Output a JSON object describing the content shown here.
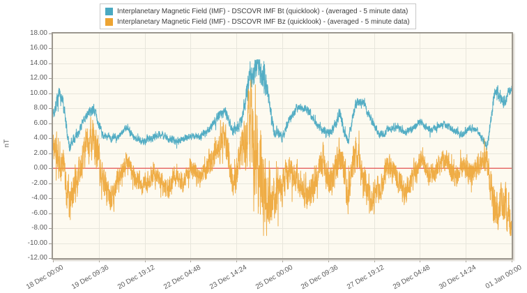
{
  "page": {
    "background": "#ffffff"
  },
  "legend": {
    "items": [
      {
        "id": "bt",
        "label": "Interplanetary Magnetic Field (IMF) - DSCOVR IMF Bt (quicklook) -  (averaged - 5 minute data)",
        "color": "#4aa9c1"
      },
      {
        "id": "bz",
        "label": "Interplanetary Magnetic Field (IMF) - DSCOVR IMF Bz (quicklook) -  (averaged - 5 minute data)",
        "color": "#eda433"
      }
    ]
  },
  "chart_data": {
    "type": "line",
    "title": "",
    "xlabel": "",
    "ylabel": "nT",
    "ylim": [
      -12,
      18
    ],
    "ytick_step": 2,
    "y_tick_labels": [
      "18.00",
      "16.00",
      "14.00",
      "12.00",
      "10.00",
      "8.00",
      "6.00",
      "4.00",
      "2.00",
      "0.00",
      "-2.00",
      "-4.00",
      "-6.00",
      "-8.00",
      "-10.00",
      "-12.00"
    ],
    "x_tick_labels": [
      "18 Dec 00:00",
      "19 Dec 09:36",
      "20 Dec 19:12",
      "22 Dec 04:48",
      "23 Dec 14:24",
      "25 Dec 00:00",
      "26 Dec 09:36",
      "27 Dec 19:12",
      "29 Dec 04:48",
      "30 Dec 14:24",
      "01 Jan 00:00"
    ],
    "x_range_days": 14,
    "sample_minutes": 5,
    "grid": true,
    "plot_bg": "#fdfaf0",
    "grid_color": "#e8e6dc",
    "border_color": "#9c978e",
    "zero_line": {
      "value": 0,
      "color": "#e64040"
    },
    "series": [
      {
        "name": "DSCOVR IMF Bt (quicklook), averaged 5 minute data",
        "color": "#4aa9c1",
        "anchor_interval_hours": 6,
        "clamp": [
          1.6,
          14.5
        ],
        "anchors": [
          7.5,
          9.8,
          3.0,
          4.5,
          7.0,
          8.0,
          4.5,
          4.0,
          4.3,
          5.5,
          4.0,
          3.6,
          4.0,
          4.6,
          4.0,
          3.6,
          4.0,
          4.4,
          4.2,
          5.0,
          6.8,
          7.6,
          5.0,
          6.0,
          12.0,
          14.0,
          11.5,
          5.0,
          4.2,
          6.8,
          8.2,
          8.0,
          6.3,
          5.0,
          4.8,
          7.2,
          3.4,
          8.8,
          8.6,
          6.2,
          4.4,
          5.2,
          5.6,
          4.8,
          5.4,
          6.2,
          5.0,
          5.6,
          5.8,
          5.0,
          4.6,
          5.5,
          4.8,
          2.8,
          10.5,
          8.8,
          10.8
        ],
        "volatility": [
          1.0,
          1.2,
          0.9,
          0.6,
          0.6,
          0.7,
          0.6,
          0.5,
          0.5,
          0.5,
          0.5,
          0.5,
          0.5,
          0.5,
          0.5,
          0.5,
          0.5,
          0.5,
          0.5,
          0.6,
          0.7,
          0.7,
          0.6,
          0.9,
          1.8,
          1.9,
          1.8,
          0.8,
          0.6,
          0.6,
          0.6,
          0.6,
          0.6,
          0.6,
          0.6,
          0.8,
          0.9,
          0.7,
          0.6,
          0.6,
          0.5,
          0.5,
          0.5,
          0.5,
          0.5,
          0.5,
          0.5,
          0.5,
          0.5,
          0.5,
          0.5,
          0.5,
          0.5,
          0.7,
          0.9,
          0.8,
          0.6
        ]
      },
      {
        "name": "DSCOVR IMF Bz (quicklook), averaged 5 minute data",
        "color": "#eda433",
        "anchor_interval_hours": 6,
        "clamp": [
          -9.0,
          13.8
        ],
        "anchors": [
          3.5,
          1.0,
          -4.0,
          -1.5,
          3.0,
          4.0,
          -1.5,
          -4.5,
          -1.5,
          1.0,
          -1.2,
          -2.5,
          -0.8,
          -1.5,
          -3.0,
          -1.0,
          -2.0,
          0.5,
          -1.5,
          0.5,
          2.5,
          4.0,
          -2.0,
          2.5,
          5.0,
          0.0,
          -4.0,
          -4.5,
          -2.0,
          0.5,
          -1.5,
          -3.5,
          -2.0,
          1.5,
          -2.5,
          2.0,
          -3.0,
          2.5,
          -2.0,
          -4.0,
          -2.5,
          0.5,
          -1.5,
          -3.5,
          -1.0,
          1.5,
          -1.0,
          0.0,
          1.5,
          -1.5,
          0.5,
          -1.0,
          0.5,
          1.5,
          -6.5,
          -4.0,
          -7.5
        ],
        "volatility": [
          2.6,
          2.8,
          2.6,
          2.4,
          2.6,
          2.8,
          2.4,
          2.2,
          1.8,
          1.5,
          1.4,
          1.4,
          1.4,
          1.4,
          1.5,
          1.4,
          1.4,
          1.4,
          1.4,
          1.6,
          2.2,
          2.4,
          2.2,
          2.6,
          6.5,
          7.0,
          6.0,
          3.2,
          2.6,
          2.4,
          2.2,
          2.4,
          2.2,
          2.2,
          2.4,
          2.4,
          2.6,
          2.4,
          2.2,
          2.2,
          1.8,
          1.6,
          1.8,
          1.8,
          1.6,
          1.6,
          1.6,
          1.6,
          1.6,
          1.6,
          1.6,
          1.6,
          1.6,
          2.0,
          3.2,
          2.8,
          2.4
        ]
      }
    ]
  }
}
